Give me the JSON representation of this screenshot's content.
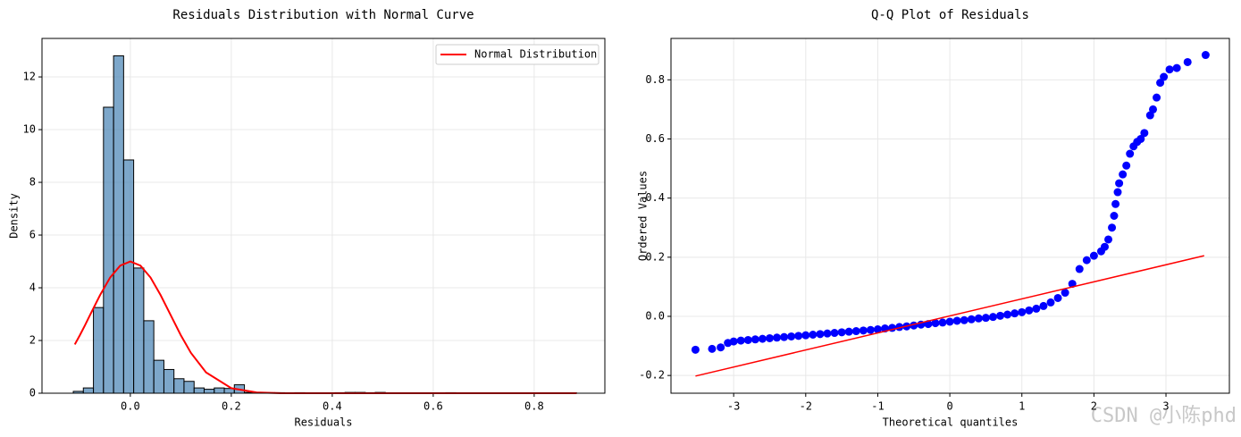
{
  "chart_data": [
    {
      "type": "histogram",
      "title": "Residuals Distribution with Normal Curve",
      "xlabel": "Residuals",
      "ylabel": "Density",
      "bins": [
        -0.113,
        -0.0931,
        -0.0731,
        -0.0532,
        -0.0332,
        -0.0133,
        0.0066,
        0.0266,
        0.0465,
        0.0665,
        0.0864,
        0.1063,
        0.1263,
        0.1462,
        0.1662,
        0.1861,
        0.206,
        0.226,
        0.2459,
        0.2659,
        0.2858,
        0.3057,
        0.3257,
        0.3456,
        0.3656,
        0.3855,
        0.4054,
        0.4254,
        0.4453,
        0.4653,
        0.4852,
        0.5051,
        0.5251,
        0.545,
        0.565,
        0.5849,
        0.6048,
        0.6248,
        0.6447,
        0.6647,
        0.6846,
        0.7045,
        0.7245,
        0.7444,
        0.7644,
        0.7843,
        0.8042,
        0.8242,
        0.8441,
        0.8641,
        0.884
      ],
      "values": [
        0.07,
        0.2,
        3.25,
        10.85,
        12.8,
        8.85,
        4.75,
        2.75,
        1.25,
        0.9,
        0.55,
        0.45,
        0.2,
        0.15,
        0.2,
        0.18,
        0.32,
        0.03,
        0.03,
        0.02,
        0.02,
        0.01,
        0.02,
        0.01,
        0.01,
        0,
        0.02,
        0.03,
        0.03,
        0.02,
        0.03,
        0.01,
        0.01,
        0,
        0.01,
        0,
        0.01,
        0.02,
        0.01,
        0,
        0.01,
        0,
        0,
        0,
        0,
        0,
        0,
        0,
        0,
        0.01
      ],
      "color": "#4682b4",
      "edgecolor": "#000000",
      "line": {
        "name": "Normal Distribution",
        "color": "#ff0000",
        "x": [
          -0.11,
          -0.1,
          -0.09,
          -0.08,
          -0.06,
          -0.04,
          -0.02,
          0,
          0.02,
          0.04,
          0.06,
          0.08,
          0.1,
          0.12,
          0.15,
          0.2,
          0.25,
          0.3,
          0.4,
          0.6,
          0.884
        ],
        "values": [
          1.85,
          2.2,
          2.57,
          2.96,
          3.72,
          4.39,
          4.84,
          5.0,
          4.84,
          4.39,
          3.72,
          2.96,
          2.2,
          1.53,
          0.79,
          0.19,
          0.03,
          0,
          0,
          0,
          0
        ]
      },
      "legend": "upper right",
      "grid": true,
      "xlim": [
        -0.175,
        0.94
      ],
      "ylim": [
        0,
        13.46
      ],
      "xticks": [
        {
          "value": 0,
          "label": "0.0"
        },
        0.2,
        0.4,
        0.6,
        0.8
      ],
      "yticks": [
        0,
        2,
        4,
        6,
        8,
        10,
        12
      ]
    },
    {
      "type": "scatter",
      "title": "Q-Q Plot of Residuals",
      "xlabel": "Theoretical quantiles",
      "ylabel": "Ordered Values",
      "x": [
        -3.53,
        -3.3,
        -3.18,
        -3.08,
        -3.0,
        -2.9,
        -2.8,
        -2.7,
        -2.6,
        -2.5,
        -2.4,
        -2.3,
        -2.2,
        -2.1,
        -2.0,
        -1.9,
        -1.8,
        -1.7,
        -1.6,
        -1.5,
        -1.4,
        -1.3,
        -1.2,
        -1.1,
        -1.0,
        -0.9,
        -0.8,
        -0.7,
        -0.6,
        -0.5,
        -0.4,
        -0.3,
        -0.2,
        -0.1,
        0,
        0.1,
        0.2,
        0.3,
        0.4,
        0.5,
        0.6,
        0.7,
        0.8,
        0.9,
        1.0,
        1.1,
        1.2,
        1.3,
        1.4,
        1.5,
        1.6,
        1.7,
        1.8,
        1.9,
        2.0,
        2.1,
        2.15,
        2.2,
        2.25,
        2.28,
        2.3,
        2.33,
        2.35,
        2.4,
        2.45,
        2.5,
        2.55,
        2.6,
        2.65,
        2.7,
        2.78,
        2.82,
        2.87,
        2.92,
        2.97,
        3.05,
        3.15,
        3.3,
        3.55
      ],
      "values": [
        -0.113,
        -0.11,
        -0.105,
        -0.09,
        -0.085,
        -0.082,
        -0.08,
        -0.078,
        -0.076,
        -0.074,
        -0.072,
        -0.07,
        -0.068,
        -0.066,
        -0.064,
        -0.062,
        -0.06,
        -0.058,
        -0.056,
        -0.054,
        -0.052,
        -0.05,
        -0.048,
        -0.046,
        -0.044,
        -0.041,
        -0.039,
        -0.036,
        -0.034,
        -0.031,
        -0.028,
        -0.026,
        -0.023,
        -0.021,
        -0.018,
        -0.015,
        -0.013,
        -0.01,
        -0.007,
        -0.005,
        -0.002,
        0.002,
        0.006,
        0.01,
        0.014,
        0.02,
        0.026,
        0.035,
        0.047,
        0.062,
        0.08,
        0.11,
        0.16,
        0.19,
        0.205,
        0.22,
        0.235,
        0.26,
        0.3,
        0.34,
        0.38,
        0.42,
        0.45,
        0.48,
        0.51,
        0.55,
        0.575,
        0.59,
        0.6,
        0.62,
        0.68,
        0.7,
        0.74,
        0.79,
        0.81,
        0.835,
        0.84,
        0.86,
        0.884
      ],
      "color": "#0000ff",
      "line": {
        "color": "#ff0000",
        "x": [
          -3.53,
          3.53
        ],
        "values": [
          -0.202,
          0.205
        ]
      },
      "grid": true,
      "xlim": [
        -3.87,
        3.88
      ],
      "ylim": [
        -0.26,
        0.94
      ],
      "xticks": [
        -3,
        -2,
        -1,
        0,
        1,
        2,
        3
      ],
      "yticks": [
        -0.2,
        {
          "value": 0,
          "label": "0.0"
        },
        0.2,
        0.4,
        0.6,
        0.8
      ]
    }
  ],
  "watermark": "CSDN @小陈phd"
}
